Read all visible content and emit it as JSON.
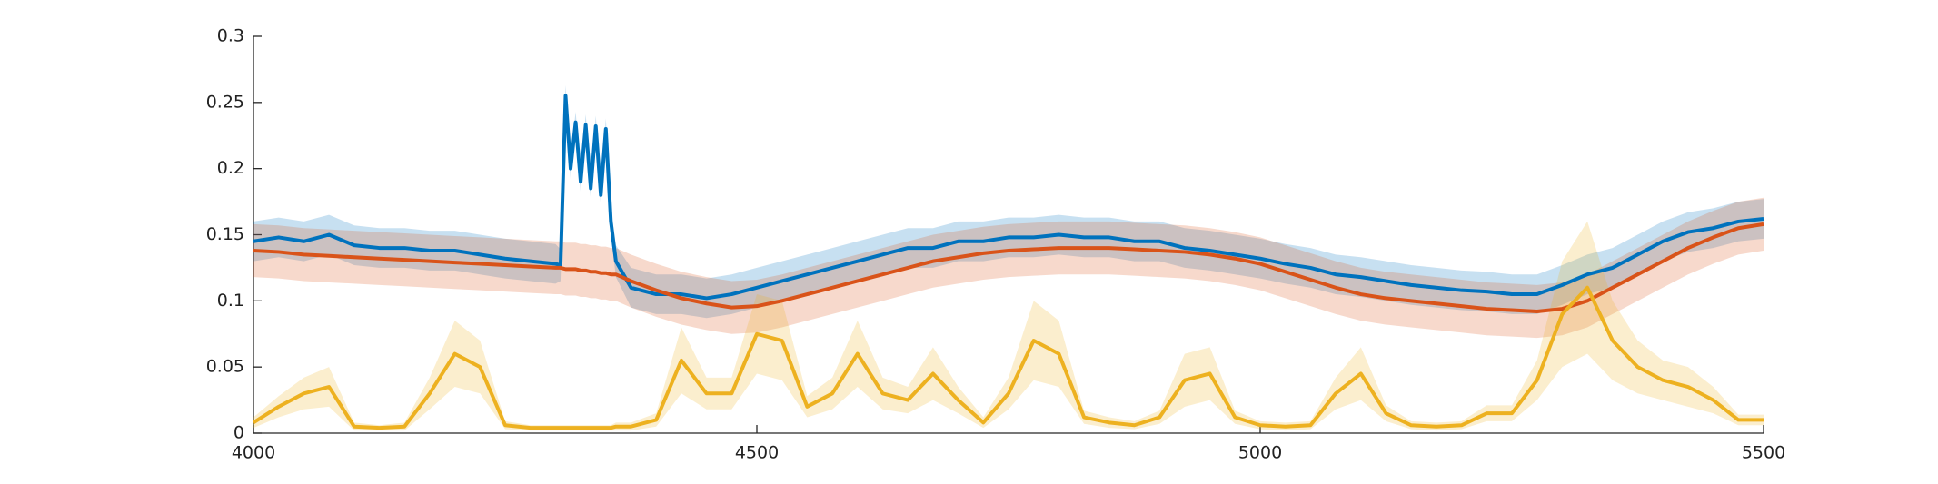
{
  "chart_data": {
    "type": "line",
    "x": [
      4000,
      4025,
      4050,
      4075,
      4100,
      4125,
      4150,
      4175,
      4200,
      4225,
      4250,
      4275,
      4300,
      4305,
      4310,
      4315,
      4320,
      4325,
      4330,
      4335,
      4340,
      4345,
      4350,
      4355,
      4360,
      4375,
      4400,
      4425,
      4450,
      4475,
      4500,
      4525,
      4550,
      4575,
      4600,
      4625,
      4650,
      4675,
      4700,
      4725,
      4750,
      4775,
      4800,
      4825,
      4850,
      4875,
      4900,
      4925,
      4950,
      4975,
      5000,
      5025,
      5050,
      5075,
      5100,
      5125,
      5150,
      5175,
      5200,
      5225,
      5250,
      5275,
      5300,
      5325,
      5350,
      5375,
      5400,
      5425,
      5450,
      5475,
      5500
    ],
    "series": [
      {
        "color": "#0072BD",
        "values": [
          0.145,
          0.148,
          0.145,
          0.15,
          0.142,
          0.14,
          0.14,
          0.138,
          0.138,
          0.135,
          0.132,
          0.13,
          0.128,
          0.127,
          0.255,
          0.2,
          0.235,
          0.19,
          0.233,
          0.185,
          0.232,
          0.18,
          0.23,
          0.16,
          0.13,
          0.11,
          0.105,
          0.105,
          0.102,
          0.105,
          0.11,
          0.115,
          0.12,
          0.125,
          0.13,
          0.135,
          0.14,
          0.14,
          0.145,
          0.145,
          0.148,
          0.148,
          0.15,
          0.148,
          0.148,
          0.145,
          0.145,
          0.14,
          0.138,
          0.135,
          0.132,
          0.128,
          0.125,
          0.12,
          0.118,
          0.115,
          0.112,
          0.11,
          0.108,
          0.107,
          0.105,
          0.105,
          0.112,
          0.12,
          0.125,
          0.135,
          0.145,
          0.152,
          0.155,
          0.16,
          0.162
        ],
        "error": [
          0.015,
          0.015,
          0.015,
          0.015,
          0.015,
          0.015,
          0.015,
          0.015,
          0.015,
          0.015,
          0.015,
          0.015,
          0.015,
          0.012,
          0.008,
          0.008,
          0.008,
          0.008,
          0.008,
          0.008,
          0.008,
          0.008,
          0.008,
          0.01,
          0.012,
          0.015,
          0.015,
          0.015,
          0.015,
          0.015,
          0.015,
          0.015,
          0.015,
          0.015,
          0.015,
          0.015,
          0.015,
          0.015,
          0.015,
          0.015,
          0.015,
          0.015,
          0.015,
          0.015,
          0.015,
          0.015,
          0.015,
          0.015,
          0.015,
          0.015,
          0.015,
          0.015,
          0.015,
          0.015,
          0.015,
          0.015,
          0.015,
          0.015,
          0.015,
          0.015,
          0.015,
          0.015,
          0.015,
          0.015,
          0.015,
          0.015,
          0.015,
          0.015,
          0.015,
          0.015,
          0.015
        ]
      },
      {
        "color": "#D95319",
        "values": [
          0.138,
          0.137,
          0.135,
          0.134,
          0.133,
          0.132,
          0.131,
          0.13,
          0.129,
          0.128,
          0.127,
          0.126,
          0.125,
          0.125,
          0.124,
          0.124,
          0.124,
          0.123,
          0.123,
          0.122,
          0.122,
          0.121,
          0.121,
          0.12,
          0.12,
          0.115,
          0.108,
          0.102,
          0.098,
          0.095,
          0.096,
          0.1,
          0.105,
          0.11,
          0.115,
          0.12,
          0.125,
          0.13,
          0.133,
          0.136,
          0.138,
          0.139,
          0.14,
          0.14,
          0.14,
          0.139,
          0.138,
          0.137,
          0.135,
          0.132,
          0.128,
          0.122,
          0.116,
          0.11,
          0.105,
          0.102,
          0.1,
          0.098,
          0.096,
          0.094,
          0.093,
          0.092,
          0.094,
          0.1,
          0.11,
          0.12,
          0.13,
          0.14,
          0.148,
          0.155,
          0.158
        ],
        "error": [
          0.02,
          0.02,
          0.02,
          0.02,
          0.02,
          0.02,
          0.02,
          0.02,
          0.02,
          0.02,
          0.02,
          0.02,
          0.02,
          0.02,
          0.02,
          0.02,
          0.02,
          0.02,
          0.02,
          0.02,
          0.02,
          0.02,
          0.02,
          0.02,
          0.02,
          0.02,
          0.02,
          0.02,
          0.02,
          0.02,
          0.02,
          0.02,
          0.02,
          0.02,
          0.02,
          0.02,
          0.02,
          0.02,
          0.02,
          0.02,
          0.02,
          0.02,
          0.02,
          0.02,
          0.02,
          0.02,
          0.02,
          0.02,
          0.02,
          0.02,
          0.02,
          0.02,
          0.02,
          0.02,
          0.02,
          0.02,
          0.02,
          0.02,
          0.02,
          0.02,
          0.02,
          0.02,
          0.02,
          0.02,
          0.02,
          0.02,
          0.02,
          0.02,
          0.02,
          0.02,
          0.02
        ]
      },
      {
        "color": "#EDB120",
        "values": [
          0.008,
          0.02,
          0.03,
          0.035,
          0.005,
          0.004,
          0.005,
          0.03,
          0.06,
          0.05,
          0.006,
          0.004,
          0.004,
          0.004,
          0.004,
          0.004,
          0.004,
          0.004,
          0.004,
          0.004,
          0.004,
          0.004,
          0.004,
          0.004,
          0.005,
          0.005,
          0.01,
          0.055,
          0.03,
          0.03,
          0.075,
          0.07,
          0.02,
          0.03,
          0.06,
          0.03,
          0.025,
          0.045,
          0.025,
          0.008,
          0.03,
          0.07,
          0.06,
          0.012,
          0.008,
          0.006,
          0.012,
          0.04,
          0.045,
          0.012,
          0.006,
          0.005,
          0.006,
          0.03,
          0.045,
          0.015,
          0.006,
          0.005,
          0.006,
          0.015,
          0.015,
          0.04,
          0.09,
          0.11,
          0.07,
          0.05,
          0.04,
          0.035,
          0.025,
          0.01,
          0.01
        ],
        "error": [
          0.004,
          0.008,
          0.012,
          0.015,
          0.003,
          0.002,
          0.003,
          0.012,
          0.025,
          0.02,
          0.003,
          0.002,
          0.002,
          0.002,
          0.002,
          0.002,
          0.002,
          0.002,
          0.002,
          0.002,
          0.002,
          0.002,
          0.002,
          0.002,
          0.003,
          0.003,
          0.005,
          0.025,
          0.012,
          0.012,
          0.03,
          0.03,
          0.008,
          0.012,
          0.025,
          0.012,
          0.01,
          0.02,
          0.01,
          0.004,
          0.012,
          0.03,
          0.025,
          0.005,
          0.004,
          0.003,
          0.005,
          0.02,
          0.02,
          0.005,
          0.003,
          0.003,
          0.003,
          0.012,
          0.02,
          0.006,
          0.003,
          0.003,
          0.003,
          0.006,
          0.006,
          0.015,
          0.04,
          0.05,
          0.03,
          0.02,
          0.015,
          0.015,
          0.01,
          0.004,
          0.004
        ]
      }
    ],
    "xlim": [
      4000,
      5500
    ],
    "xticks": [
      4000,
      4500,
      5000,
      5500
    ],
    "ylim": [
      0,
      0.3
    ],
    "yticks": [
      0,
      0.05,
      0.1,
      0.15,
      0.2,
      0.25,
      0.3
    ]
  }
}
